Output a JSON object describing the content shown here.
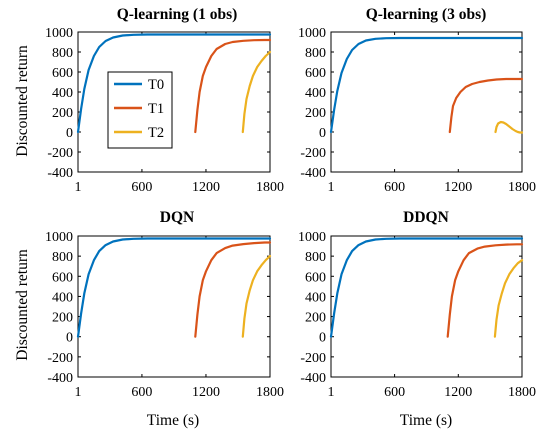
{
  "colors": {
    "T0": "#0072BD",
    "T1": "#D95319",
    "T2": "#EDB120"
  },
  "chart_data": [
    {
      "type": "line",
      "title": "Q-learning (1 obs)",
      "xlabel": "",
      "ylabel": "Discounted return",
      "xlim": [
        1,
        1800
      ],
      "ylim": [
        -400,
        1000
      ],
      "xticks": [
        1,
        600,
        1200,
        1800
      ],
      "yticks": [
        -400,
        -200,
        0,
        200,
        400,
        600,
        800,
        1000
      ],
      "legend": {
        "placement": "left-middle",
        "entries": [
          "T0",
          "T1",
          "T2"
        ]
      },
      "series": [
        {
          "name": "T0",
          "x": [
            1,
            30,
            60,
            100,
            150,
            200,
            260,
            330,
            420,
            520,
            650,
            800,
            1000,
            1300,
            1800
          ],
          "y": [
            0,
            230,
            430,
            620,
            760,
            850,
            910,
            945,
            965,
            972,
            975,
            975,
            975,
            975,
            975
          ]
        },
        {
          "name": "T1",
          "x": [
            1100,
            1120,
            1140,
            1170,
            1200,
            1250,
            1300,
            1380,
            1450,
            1550,
            1650,
            1750,
            1800
          ],
          "y": [
            0,
            220,
            400,
            560,
            650,
            760,
            830,
            880,
            900,
            912,
            918,
            920,
            920
          ]
        },
        {
          "name": "T2",
          "x": [
            1545,
            1560,
            1580,
            1610,
            1640,
            1680,
            1720,
            1760,
            1800
          ],
          "y": [
            0,
            180,
            330,
            460,
            560,
            650,
            710,
            760,
            800
          ]
        }
      ]
    },
    {
      "type": "line",
      "title": "Q-learning (3 obs)",
      "xlabel": "",
      "ylabel": "",
      "xlim": [
        1,
        1800
      ],
      "ylim": [
        -400,
        1000
      ],
      "xticks": [
        1,
        600,
        1200,
        1800
      ],
      "yticks": [
        -400,
        -200,
        0,
        200,
        400,
        600,
        800,
        1000
      ],
      "series": [
        {
          "name": "T0",
          "x": [
            1,
            30,
            60,
            100,
            150,
            200,
            260,
            330,
            420,
            520,
            650,
            800,
            1000,
            1300,
            1800
          ],
          "y": [
            0,
            220,
            410,
            590,
            730,
            820,
            880,
            915,
            932,
            938,
            940,
            940,
            940,
            940,
            940
          ]
        },
        {
          "name": "T1",
          "x": [
            1120,
            1135,
            1150,
            1180,
            1220,
            1270,
            1330,
            1400,
            1480,
            1560,
            1650,
            1730,
            1800
          ],
          "y": [
            0,
            150,
            260,
            340,
            400,
            450,
            480,
            500,
            515,
            525,
            530,
            530,
            530
          ]
        },
        {
          "name": "T2",
          "x": [
            1550,
            1560,
            1575,
            1600,
            1625,
            1650,
            1680,
            1710,
            1740,
            1760,
            1780,
            1800
          ],
          "y": [
            0,
            50,
            85,
            100,
            95,
            80,
            55,
            30,
            10,
            0,
            -5,
            -5
          ]
        }
      ]
    },
    {
      "type": "line",
      "title": "DQN",
      "xlabel": "Time (s)",
      "ylabel": "Discounted return",
      "xlim": [
        1,
        1800
      ],
      "ylim": [
        -400,
        1000
      ],
      "xticks": [
        1,
        600,
        1200,
        1800
      ],
      "yticks": [
        -400,
        -200,
        0,
        200,
        400,
        600,
        800,
        1000
      ],
      "series": [
        {
          "name": "T0",
          "x": [
            1,
            30,
            60,
            100,
            150,
            200,
            260,
            330,
            420,
            520,
            650,
            800,
            1000,
            1300,
            1800
          ],
          "y": [
            0,
            230,
            430,
            620,
            760,
            850,
            910,
            945,
            965,
            972,
            975,
            975,
            975,
            975,
            975
          ]
        },
        {
          "name": "T1",
          "x": [
            1100,
            1120,
            1140,
            1170,
            1200,
            1250,
            1300,
            1380,
            1450,
            1550,
            1650,
            1750,
            1800
          ],
          "y": [
            0,
            220,
            400,
            560,
            650,
            760,
            830,
            880,
            905,
            920,
            930,
            935,
            935
          ]
        },
        {
          "name": "T2",
          "x": [
            1545,
            1560,
            1580,
            1610,
            1640,
            1680,
            1720,
            1760,
            1800
          ],
          "y": [
            0,
            180,
            330,
            460,
            560,
            650,
            710,
            760,
            800
          ]
        }
      ]
    },
    {
      "type": "line",
      "title": "DDQN",
      "xlabel": "Time (s)",
      "ylabel": "",
      "xlim": [
        1,
        1800
      ],
      "ylim": [
        -400,
        1000
      ],
      "xticks": [
        1,
        600,
        1200,
        1800
      ],
      "yticks": [
        -400,
        -200,
        0,
        200,
        400,
        600,
        800,
        1000
      ],
      "series": [
        {
          "name": "T0",
          "x": [
            1,
            30,
            60,
            100,
            150,
            200,
            260,
            330,
            420,
            520,
            650,
            800,
            1000,
            1300,
            1800
          ],
          "y": [
            0,
            230,
            430,
            620,
            760,
            850,
            910,
            945,
            965,
            972,
            975,
            975,
            975,
            975,
            975
          ]
        },
        {
          "name": "T1",
          "x": [
            1100,
            1120,
            1140,
            1170,
            1200,
            1250,
            1300,
            1380,
            1450,
            1550,
            1650,
            1750,
            1800
          ],
          "y": [
            0,
            220,
            400,
            560,
            650,
            760,
            830,
            875,
            895,
            908,
            915,
            918,
            918
          ]
        },
        {
          "name": "T2",
          "x": [
            1545,
            1560,
            1580,
            1610,
            1640,
            1680,
            1720,
            1760,
            1800
          ],
          "y": [
            0,
            170,
            310,
            430,
            530,
            620,
            680,
            730,
            760
          ]
        }
      ]
    }
  ]
}
